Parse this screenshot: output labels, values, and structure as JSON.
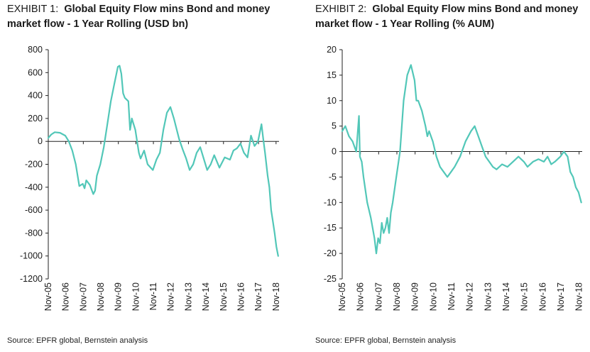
{
  "panels": [
    {
      "exhibit": "EXHIBIT 1:",
      "title": "Global Equity Flow mins Bond and money market flow - 1 Year Rolling (USD bn)",
      "source": "Source: EPFR global, Bernstein analysis"
    },
    {
      "exhibit": "EXHIBIT 2:",
      "title": "Global Equity Flow mins Bond and money market flow - 1 Year Rolling (% AUM)",
      "source": "Source: EPFR global, Bernstein analysis"
    }
  ],
  "chart_data": [
    {
      "type": "line",
      "title": "Global Equity Flow mins Bond and money market flow - 1 Year Rolling (USD bn)",
      "ylim": [
        -1200,
        800
      ],
      "yticks": [
        800,
        600,
        400,
        200,
        0,
        -200,
        -400,
        -600,
        -800,
        -1000,
        -1200
      ],
      "xlim": [
        2005.83,
        2019.0
      ],
      "xticks": [
        "Nov-05",
        "Nov-06",
        "Nov-07",
        "Nov-08",
        "Nov-09",
        "Nov-10",
        "Nov-11",
        "Nov-12",
        "Nov-13",
        "Nov-14",
        "Nov-15",
        "Nov-16",
        "Nov-17",
        "Nov-18"
      ],
      "color": "#52c7b8",
      "grid": false,
      "series": [
        {
          "x": [
            2005.83,
            2006.0,
            2006.2,
            2006.5,
            2006.8,
            2007.0,
            2007.2,
            2007.4,
            2007.6,
            2007.8,
            2007.9,
            2008.0,
            2008.2,
            2008.4,
            2008.5,
            2008.6,
            2008.8,
            2009.0,
            2009.2,
            2009.4,
            2009.6,
            2009.8,
            2009.9,
            2010.0,
            2010.1,
            2010.2,
            2010.4,
            2010.5,
            2010.6,
            2010.8,
            2011.0,
            2011.1,
            2011.3,
            2011.5,
            2011.8,
            2012.0,
            2012.2,
            2012.4,
            2012.6,
            2012.8,
            2013.0,
            2013.3,
            2013.5,
            2013.7,
            2013.9,
            2014.1,
            2014.3,
            2014.5,
            2014.7,
            2014.9,
            2015.1,
            2015.3,
            2015.6,
            2015.9,
            2016.2,
            2016.4,
            2016.6,
            2016.8,
            2017.0,
            2017.2,
            2017.4,
            2017.6,
            2017.8,
            2018.0,
            2018.1,
            2018.2,
            2018.35,
            2018.45,
            2018.55,
            2018.65,
            2018.75,
            2018.85,
            2018.95
          ],
          "y": [
            30,
            60,
            80,
            75,
            50,
            0,
            -80,
            -200,
            -390,
            -370,
            -410,
            -340,
            -380,
            -460,
            -430,
            -300,
            -200,
            -50,
            150,
            350,
            500,
            650,
            660,
            590,
            420,
            380,
            350,
            100,
            200,
            100,
            -100,
            -150,
            -80,
            -200,
            -250,
            -160,
            -100,
            100,
            250,
            300,
            200,
            20,
            -70,
            -150,
            -250,
            -200,
            -100,
            -50,
            -150,
            -250,
            -200,
            -120,
            -230,
            -140,
            -160,
            -80,
            -60,
            -20,
            -100,
            -140,
            50,
            -40,
            0,
            150,
            20,
            -100,
            -300,
            -400,
            -600,
            -700,
            -800,
            -920,
            -1000
          ]
        }
      ]
    },
    {
      "type": "line",
      "title": "Global Equity Flow mins Bond and money market flow - 1 Year Rolling (% AUM)",
      "ylim": [
        -25,
        20
      ],
      "yticks": [
        20,
        15,
        10,
        5,
        0,
        -5,
        -10,
        -15,
        -20,
        -25
      ],
      "xlim": [
        2005.83,
        2019.0
      ],
      "xticks": [
        "Nov-05",
        "Nov-06",
        "Nov-07",
        "Nov-08",
        "Nov-09",
        "Nov-10",
        "Nov-11",
        "Nov-12",
        "Nov-13",
        "Nov-14",
        "Nov-15",
        "Nov-16",
        "Nov-17",
        "Nov-18"
      ],
      "color": "#52c7b8",
      "grid": false,
      "series": [
        {
          "x": [
            2005.83,
            2006.0,
            2006.2,
            2006.4,
            2006.6,
            2006.75,
            2006.8,
            2006.9,
            2007.0,
            2007.2,
            2007.4,
            2007.6,
            2007.7,
            2007.8,
            2007.9,
            2008.0,
            2008.1,
            2008.2,
            2008.3,
            2008.4,
            2008.5,
            2008.6,
            2008.8,
            2009.0,
            2009.2,
            2009.4,
            2009.6,
            2009.8,
            2009.9,
            2010.0,
            2010.2,
            2010.4,
            2010.5,
            2010.6,
            2010.8,
            2011.0,
            2011.2,
            2011.4,
            2011.6,
            2011.8,
            2012.0,
            2012.3,
            2012.6,
            2012.9,
            2013.1,
            2013.3,
            2013.5,
            2013.7,
            2013.9,
            2014.1,
            2014.3,
            2014.6,
            2014.9,
            2015.2,
            2015.5,
            2015.8,
            2016.0,
            2016.3,
            2016.6,
            2016.9,
            2017.1,
            2017.3,
            2017.5,
            2017.8,
            2018.0,
            2018.2,
            2018.35,
            2018.5,
            2018.65,
            2018.8,
            2018.95
          ],
          "y": [
            4,
            5,
            3,
            2,
            0,
            7,
            -1,
            -2,
            -5,
            -10,
            -13,
            -17,
            -20,
            -17,
            -18,
            -14,
            -16,
            -15,
            -13,
            -16,
            -12,
            -10,
            -5,
            0,
            10,
            15,
            17,
            14,
            10,
            10,
            8,
            5,
            3,
            4,
            2,
            -1,
            -3,
            -4,
            -5,
            -4,
            -3,
            -1,
            2,
            4,
            5,
            3,
            1,
            -1,
            -2,
            -3,
            -3.5,
            -2.5,
            -3,
            -2,
            -1,
            -2,
            -3,
            -2,
            -1.5,
            -2,
            -1,
            -2.5,
            -2,
            -1,
            0,
            -1,
            -4,
            -5,
            -7,
            -8,
            -10
          ]
        }
      ]
    }
  ]
}
